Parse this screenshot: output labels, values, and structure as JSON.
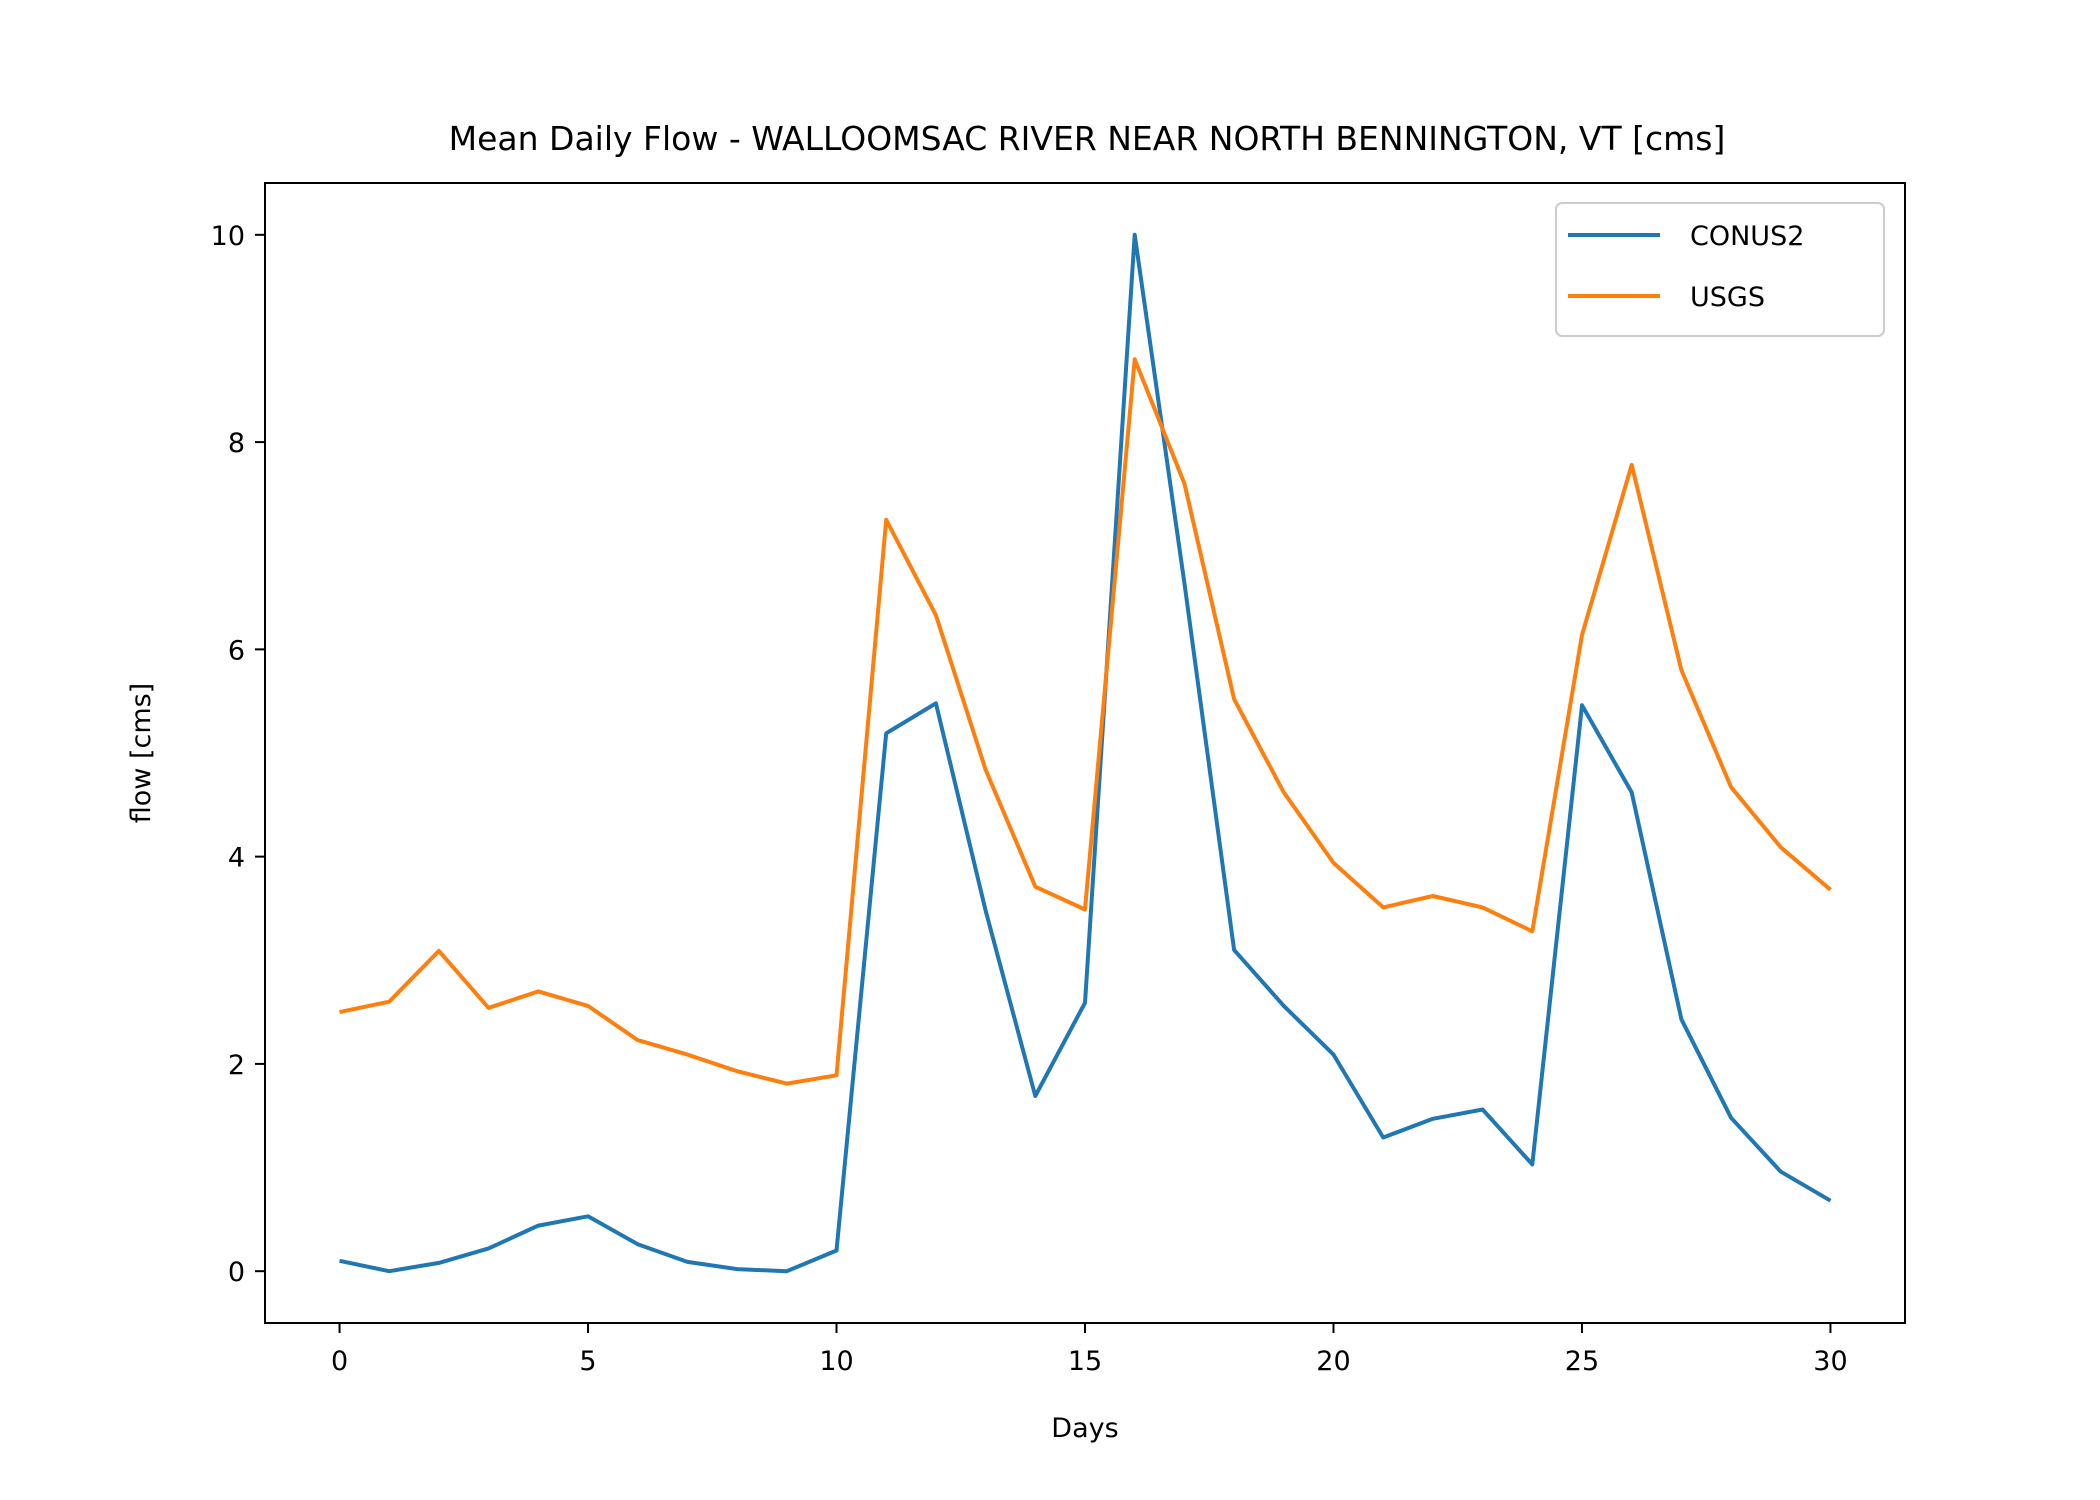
{
  "chart_data": {
    "type": "line",
    "title": "Mean Daily Flow - WALLOOMSAC RIVER NEAR NORTH BENNINGTON, VT [cms]",
    "xlabel": "Days",
    "ylabel": "flow [cms]",
    "xlim": [
      -1.5,
      31.5
    ],
    "ylim": [
      -0.5,
      10.5
    ],
    "xticks": [
      0,
      5,
      10,
      15,
      20,
      25,
      30
    ],
    "yticks": [
      0,
      2,
      4,
      6,
      8,
      10
    ],
    "grid": false,
    "legend_position": "top-right",
    "x": [
      0,
      1,
      2,
      3,
      4,
      5,
      6,
      7,
      8,
      9,
      10,
      11,
      12,
      13,
      14,
      15,
      16,
      17,
      18,
      19,
      20,
      21,
      22,
      23,
      24,
      25,
      26,
      27,
      28,
      29,
      30
    ],
    "series": [
      {
        "name": "CONUS2",
        "color": "#1f77b4",
        "values": [
          0.1,
          0.0,
          0.08,
          0.22,
          0.44,
          0.53,
          0.26,
          0.09,
          0.02,
          0.0,
          0.2,
          5.19,
          5.48,
          3.48,
          1.69,
          2.59,
          10.0,
          6.64,
          3.1,
          2.56,
          2.09,
          1.29,
          1.47,
          1.56,
          1.03,
          5.46,
          4.62,
          2.43,
          1.48,
          0.96,
          0.68
        ]
      },
      {
        "name": "USGS",
        "color": "#ff7f0e",
        "values": [
          2.5,
          2.6,
          3.09,
          2.54,
          2.7,
          2.56,
          2.23,
          2.09,
          1.93,
          1.81,
          1.89,
          7.25,
          6.33,
          4.84,
          3.71,
          3.49,
          8.8,
          7.6,
          5.52,
          4.62,
          3.94,
          3.51,
          3.62,
          3.51,
          3.28,
          6.14,
          7.78,
          5.8,
          4.67,
          4.09,
          3.68
        ]
      }
    ]
  }
}
